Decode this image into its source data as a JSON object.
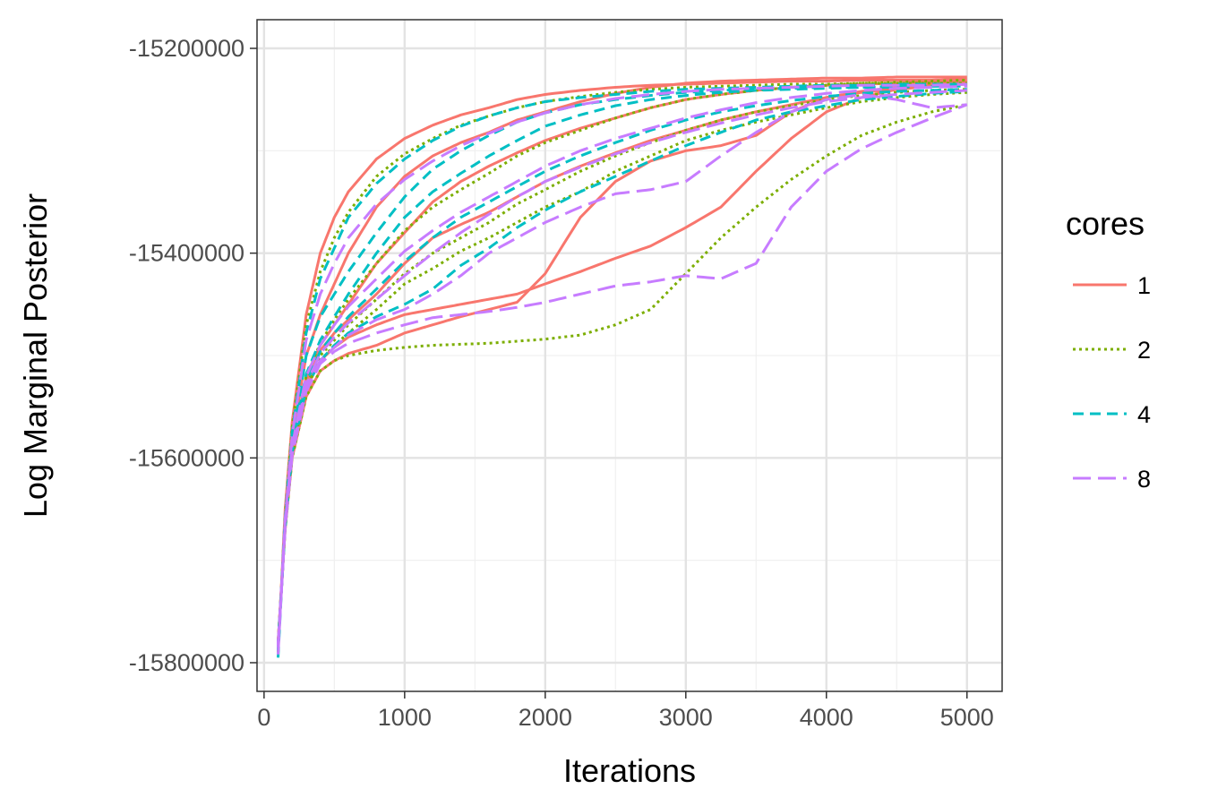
{
  "chart_data": {
    "type": "line",
    "xlabel": "Iterations",
    "ylabel": "Log Marginal Posterior",
    "xlim": [
      -50,
      5250
    ],
    "ylim": [
      -15828000,
      -15172000
    ],
    "x_ticks": [
      0,
      1000,
      2000,
      3000,
      4000,
      5000
    ],
    "x_tick_labels": [
      "0",
      "1000",
      "2000",
      "3000",
      "4000",
      "5000"
    ],
    "y_ticks": [
      -15800000,
      -15600000,
      -15400000,
      -15200000
    ],
    "y_tick_labels": [
      "-15800000",
      "-15600000",
      "-15400000",
      "-15200000"
    ],
    "grid": true,
    "legend": {
      "title": "cores",
      "position": "right",
      "entries": [
        {
          "label": "1",
          "color": "#F8766D",
          "dash": "solid"
        },
        {
          "label": "2",
          "color": "#7CAE00",
          "dash": "dotted"
        },
        {
          "label": "4",
          "color": "#00BFC4",
          "dash": "dashed"
        },
        {
          "label": "8",
          "color": "#C77CFF",
          "dash": "longdash"
        }
      ]
    },
    "x": [
      100,
      150,
      200,
      300,
      400,
      500,
      600,
      800,
      1000,
      1200,
      1400,
      1600,
      1800,
      2000,
      2250,
      2500,
      2750,
      3000,
      3250,
      3500,
      3750,
      4000,
      4250,
      4500,
      4750,
      5000
    ],
    "series": [
      {
        "name": "1",
        "values": [
          -15790000,
          -15650000,
          -15565000,
          -15460000,
          -15400000,
          -15365000,
          -15340000,
          -15308000,
          -15288000,
          -15275000,
          -15265000,
          -15258000,
          -15250000,
          -15245000,
          -15241000,
          -15238000,
          -15236000,
          -15235000,
          -15234000,
          -15233000,
          -15232000,
          -15232000,
          -15231000,
          -15231000,
          -15231000,
          -15230000
        ]
      },
      {
        "name": "1",
        "values": [
          -15785000,
          -15660000,
          -15580000,
          -15500000,
          -15460000,
          -15430000,
          -15400000,
          -15355000,
          -15325000,
          -15305000,
          -15292000,
          -15282000,
          -15270000,
          -15262000,
          -15252000,
          -15244000,
          -15238000,
          -15234000,
          -15232000,
          -15231000,
          -15230000,
          -15229000,
          -15229000,
          -15228000,
          -15228000,
          -15228000
        ]
      },
      {
        "name": "1",
        "values": [
          -15780000,
          -15665000,
          -15590000,
          -15520000,
          -15490000,
          -15470000,
          -15450000,
          -15410000,
          -15380000,
          -15350000,
          -15330000,
          -15315000,
          -15302000,
          -15290000,
          -15278000,
          -15268000,
          -15258000,
          -15250000,
          -15245000,
          -15241000,
          -15238000,
          -15236000,
          -15235000,
          -15234000,
          -15233000,
          -15232000
        ]
      },
      {
        "name": "1",
        "values": [
          -15780000,
          -15670000,
          -15600000,
          -15540000,
          -15515000,
          -15505000,
          -15498000,
          -15490000,
          -15478000,
          -15470000,
          -15462000,
          -15455000,
          -15448000,
          -15420000,
          -15365000,
          -15330000,
          -15310000,
          -15300000,
          -15295000,
          -15285000,
          -15262000,
          -15248000,
          -15242000,
          -15238000,
          -15235000,
          -15233000
        ]
      },
      {
        "name": "1",
        "values": [
          -15780000,
          -15668000,
          -15595000,
          -15530000,
          -15505000,
          -15492000,
          -15482000,
          -15470000,
          -15460000,
          -15455000,
          -15450000,
          -15445000,
          -15440000,
          -15430000,
          -15418000,
          -15405000,
          -15393000,
          -15375000,
          -15355000,
          -15320000,
          -15288000,
          -15262000,
          -15248000,
          -15240000,
          -15236000,
          -15233000
        ]
      },
      {
        "name": "1",
        "values": [
          -15785000,
          -15668000,
          -15590000,
          -15525000,
          -15495000,
          -15478000,
          -15465000,
          -15440000,
          -15410000,
          -15385000,
          -15372000,
          -15360000,
          -15345000,
          -15330000,
          -15315000,
          -15302000,
          -15290000,
          -15280000,
          -15270000,
          -15262000,
          -15255000,
          -15248000,
          -15243000,
          -15240000,
          -15237000,
          -15235000
        ]
      },
      {
        "name": "2",
        "values": [
          -15790000,
          -15655000,
          -15570000,
          -15470000,
          -15418000,
          -15385000,
          -15360000,
          -15325000,
          -15303000,
          -15288000,
          -15275000,
          -15266000,
          -15258000,
          -15252000,
          -15247000,
          -15243000,
          -15240000,
          -15238000,
          -15237000,
          -15236000,
          -15235000,
          -15235000,
          -15234000,
          -15234000,
          -15234000,
          -15234000
        ]
      },
      {
        "name": "2",
        "values": [
          -15780000,
          -15670000,
          -15600000,
          -15540000,
          -15515000,
          -15505000,
          -15500000,
          -15495000,
          -15492000,
          -15490000,
          -15489000,
          -15488000,
          -15486000,
          -15484000,
          -15480000,
          -15470000,
          -15455000,
          -15420000,
          -15385000,
          -15355000,
          -15328000,
          -15305000,
          -15285000,
          -15272000,
          -15262000,
          -15255000
        ]
      },
      {
        "name": "2",
        "values": [
          -15782000,
          -15668000,
          -15595000,
          -15532000,
          -15505000,
          -15490000,
          -15478000,
          -15455000,
          -15430000,
          -15415000,
          -15398000,
          -15385000,
          -15370000,
          -15355000,
          -15340000,
          -15320000,
          -15305000,
          -15290000,
          -15280000,
          -15272000,
          -15265000,
          -15258000,
          -15252000,
          -15248000,
          -15245000,
          -15243000
        ]
      },
      {
        "name": "2",
        "values": [
          -15785000,
          -15665000,
          -15590000,
          -15520000,
          -15488000,
          -15465000,
          -15445000,
          -15410000,
          -15378000,
          -15355000,
          -15338000,
          -15322000,
          -15305000,
          -15292000,
          -15280000,
          -15268000,
          -15258000,
          -15250000,
          -15245000,
          -15241000,
          -15238000,
          -15236000,
          -15234000,
          -15233000,
          -15232000,
          -15231000
        ]
      },
      {
        "name": "2",
        "values": [
          -15782000,
          -15668000,
          -15595000,
          -15530000,
          -15500000,
          -15485000,
          -15470000,
          -15445000,
          -15420000,
          -15400000,
          -15385000,
          -15370000,
          -15352000,
          -15338000,
          -15320000,
          -15305000,
          -15292000,
          -15280000,
          -15270000,
          -15262000,
          -15256000,
          -15250000,
          -15246000,
          -15243000,
          -15241000,
          -15240000
        ]
      },
      {
        "name": "4",
        "values": [
          -15795000,
          -15658000,
          -15575000,
          -15478000,
          -15425000,
          -15395000,
          -15365000,
          -15332000,
          -15308000,
          -15290000,
          -15276000,
          -15266000,
          -15258000,
          -15252000,
          -15248000,
          -15245000,
          -15242000,
          -15240000,
          -15239000,
          -15238000,
          -15237000,
          -15236000,
          -15236000,
          -15235000,
          -15235000,
          -15235000
        ]
      },
      {
        "name": "4",
        "values": [
          -15788000,
          -15662000,
          -15582000,
          -15500000,
          -15462000,
          -15440000,
          -15418000,
          -15380000,
          -15345000,
          -15318000,
          -15300000,
          -15285000,
          -15272000,
          -15263000,
          -15255000,
          -15250000,
          -15246000,
          -15243000,
          -15241000,
          -15240000,
          -15239000,
          -15238000,
          -15238000,
          -15237000,
          -15237000,
          -15236000
        ]
      },
      {
        "name": "4",
        "values": [
          -15782000,
          -15668000,
          -15595000,
          -15532000,
          -15505000,
          -15490000,
          -15478000,
          -15462000,
          -15450000,
          -15435000,
          -15412000,
          -15395000,
          -15375000,
          -15358000,
          -15340000,
          -15325000,
          -15310000,
          -15295000,
          -15282000,
          -15270000,
          -15262000,
          -15256000,
          -15250000,
          -15247000,
          -15244000,
          -15242000
        ]
      },
      {
        "name": "4",
        "values": [
          -15785000,
          -15665000,
          -15588000,
          -15518000,
          -15485000,
          -15462000,
          -15440000,
          -15400000,
          -15365000,
          -15340000,
          -15322000,
          -15305000,
          -15290000,
          -15276000,
          -15265000,
          -15256000,
          -15250000,
          -15246000,
          -15243000,
          -15241000,
          -15240000,
          -15239000,
          -15238000,
          -15238000,
          -15237000,
          -15237000
        ]
      },
      {
        "name": "4",
        "values": [
          -15783000,
          -15667000,
          -15592000,
          -15526000,
          -15496000,
          -15478000,
          -15462000,
          -15435000,
          -15408000,
          -15385000,
          -15365000,
          -15350000,
          -15335000,
          -15320000,
          -15305000,
          -15292000,
          -15280000,
          -15270000,
          -15262000,
          -15256000,
          -15251000,
          -15247000,
          -15244000,
          -15242000,
          -15241000,
          -15240000
        ]
      },
      {
        "name": "8",
        "values": [
          -15792000,
          -15660000,
          -15578000,
          -15485000,
          -15440000,
          -15410000,
          -15385000,
          -15352000,
          -15328000,
          -15310000,
          -15295000,
          -15283000,
          -15272000,
          -15263000,
          -15255000,
          -15249000,
          -15245000,
          -15242000,
          -15240000,
          -15239000,
          -15238000,
          -15237000,
          -15236000,
          -15236000,
          -15236000,
          -15235000
        ]
      },
      {
        "name": "8",
        "values": [
          -15782000,
          -15668000,
          -15598000,
          -15535000,
          -15508000,
          -15496000,
          -15488000,
          -15478000,
          -15470000,
          -15463000,
          -15460000,
          -15457000,
          -15453000,
          -15448000,
          -15440000,
          -15432000,
          -15428000,
          -15422000,
          -15425000,
          -15410000,
          -15355000,
          -15320000,
          -15298000,
          -15282000,
          -15268000,
          -15255000
        ]
      },
      {
        "name": "8",
        "values": [
          -15782000,
          -15668000,
          -15596000,
          -15532000,
          -15505000,
          -15492000,
          -15480000,
          -15465000,
          -15455000,
          -15440000,
          -15422000,
          -15400000,
          -15385000,
          -15370000,
          -15355000,
          -15342000,
          -15338000,
          -15330000,
          -15305000,
          -15282000,
          -15262000,
          -15250000,
          -15245000,
          -15250000,
          -15258000,
          -15255000
        ]
      },
      {
        "name": "8",
        "values": [
          -15785000,
          -15665000,
          -15588000,
          -15520000,
          -15490000,
          -15470000,
          -15452000,
          -15425000,
          -15398000,
          -15378000,
          -15360000,
          -15345000,
          -15330000,
          -15315000,
          -15300000,
          -15288000,
          -15278000,
          -15268000,
          -15260000,
          -15253000,
          -15248000,
          -15244000,
          -15241000,
          -15239000,
          -15238000,
          -15237000
        ]
      },
      {
        "name": "8",
        "values": [
          -15783000,
          -15667000,
          -15592000,
          -15528000,
          -15498000,
          -15482000,
          -15468000,
          -15445000,
          -15422000,
          -15400000,
          -15380000,
          -15362000,
          -15345000,
          -15330000,
          -15316000,
          -15303000,
          -15292000,
          -15282000,
          -15273000,
          -15265000,
          -15258000,
          -15252000,
          -15248000,
          -15245000,
          -15243000,
          -15241000
        ]
      }
    ]
  }
}
